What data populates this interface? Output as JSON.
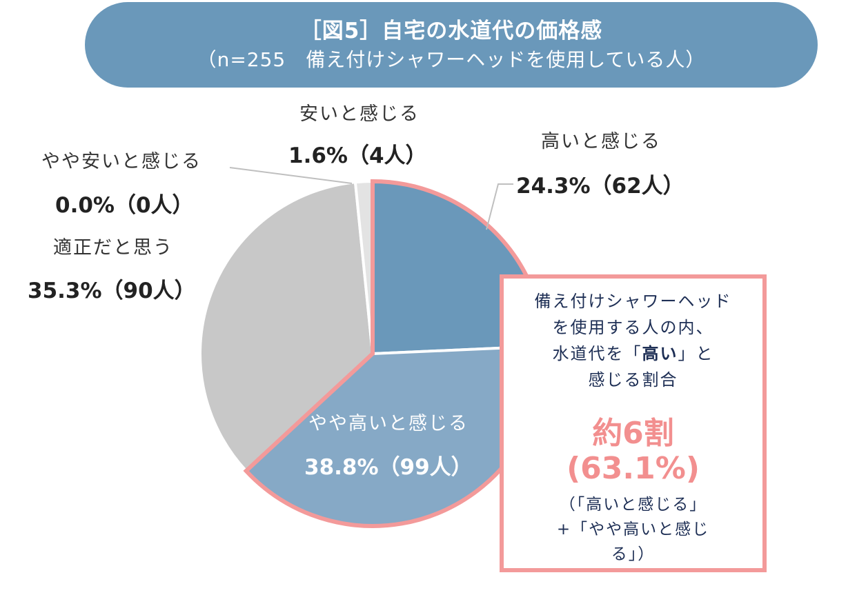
{
  "title": {
    "line1": "［図5］自宅の水道代の価格感",
    "line2": "（n=255　備え付けシャワーヘッドを使用している人）"
  },
  "chart_data": {
    "type": "pie",
    "n": 255,
    "slices": [
      {
        "label": "高いと感じる",
        "value": 24.3,
        "count": 62,
        "value_text": "24.3%（62人）",
        "color": "#6a98ba"
      },
      {
        "label": "やや高いと感じる",
        "value": 38.8,
        "count": 99,
        "value_text": "38.8%（99人）",
        "color": "#86a9c6"
      },
      {
        "label": "適正だと思う",
        "value": 35.3,
        "count": 90,
        "value_text": "35.3%（90人）",
        "color": "#c8c8c8"
      },
      {
        "label": "やや安いと感じる",
        "value": 0.0,
        "count": 0,
        "value_text": "0.0%（0人）",
        "color": "#bdbdbd"
      },
      {
        "label": "安いと感じる",
        "value": 1.6,
        "count": 4,
        "value_text": "1.6%（4人）",
        "color": "#e3e3e3"
      }
    ],
    "highlight_color": "#f39a9a"
  },
  "callout": {
    "desc_line1": "備え付けシャワーヘッド",
    "desc_line2": "を使用する人の内、",
    "desc_line3_pre": "水道代を「",
    "desc_line3_bold": "高い",
    "desc_line3_post": "」と",
    "desc_line4": "感じる割合",
    "big": "約6割",
    "pct": "(63.1%)",
    "note_line1": "（「高いと感じる」",
    "note_line2": "+「やや高いと感じ",
    "note_line3": "る」）"
  }
}
